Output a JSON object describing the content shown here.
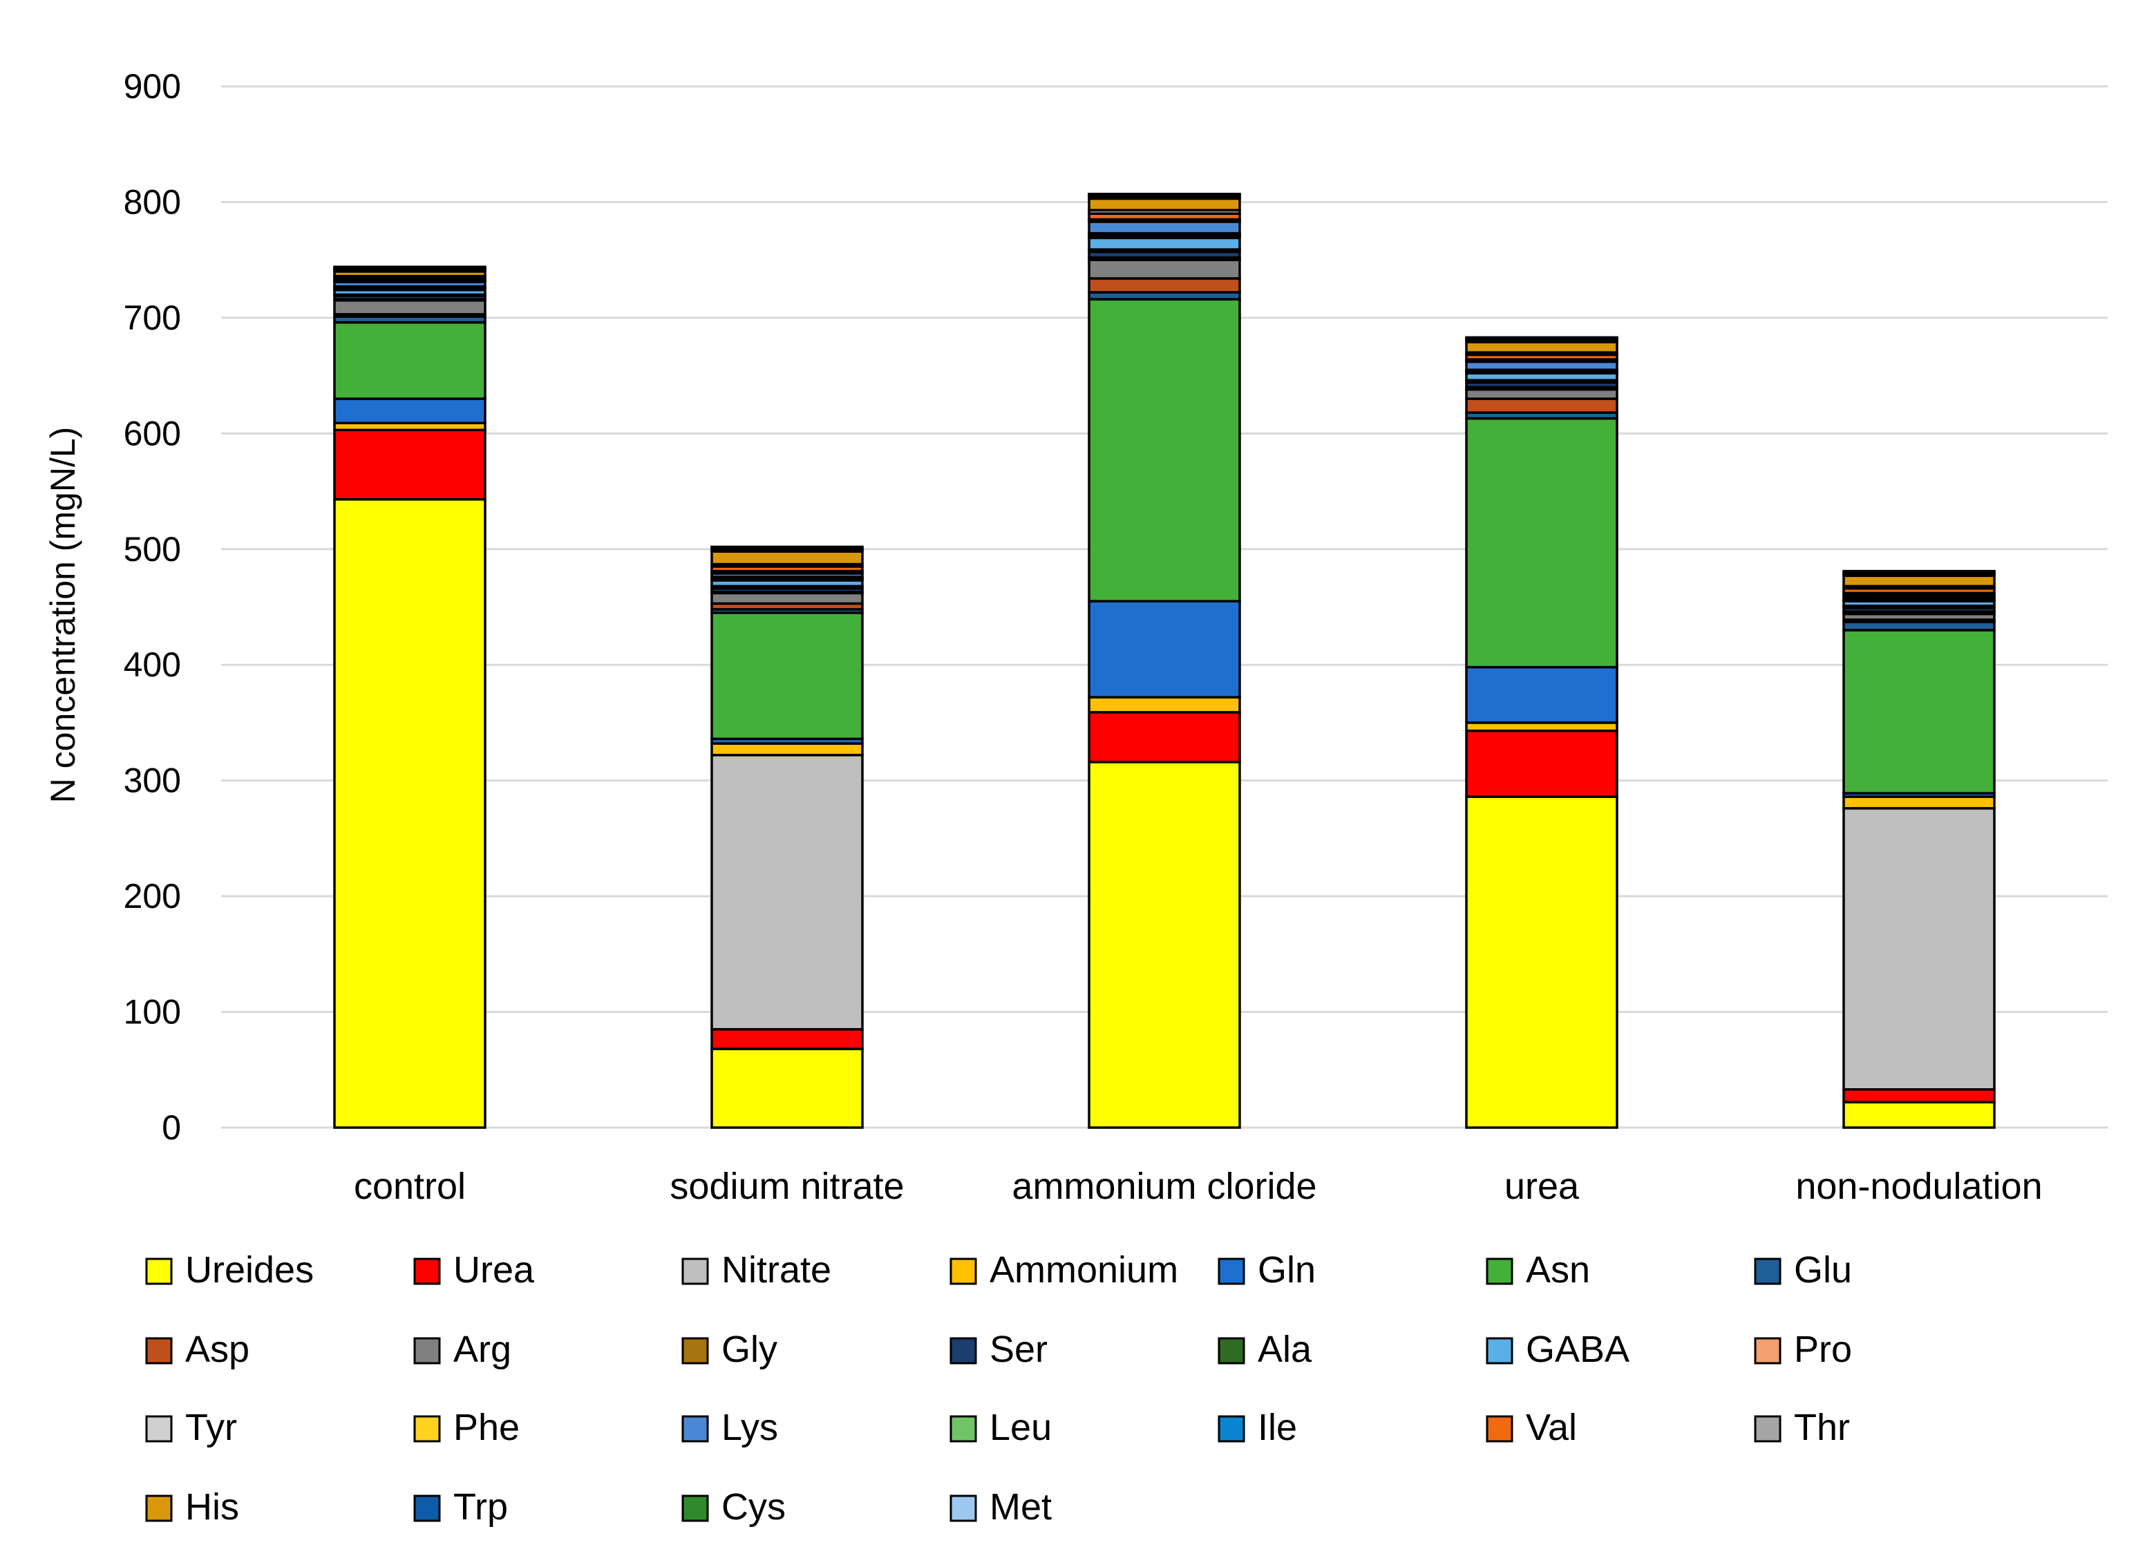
{
  "chart_data": {
    "type": "bar",
    "stacked": true,
    "title": "",
    "xlabel": "",
    "ylabel": "N concentration (mgN/L)",
    "ylim": [
      0,
      900
    ],
    "yticks": [
      0,
      100,
      200,
      300,
      400,
      500,
      600,
      700,
      800,
      900
    ],
    "grid": true,
    "legend_position": "bottom",
    "categories": [
      "control",
      "sodium nitrate",
      "ammonium cloride",
      "urea",
      "non-nodulation"
    ],
    "series": [
      {
        "name": "Ureides",
        "color": "#FFFF00",
        "values": [
          543,
          68,
          316,
          286,
          22
        ]
      },
      {
        "name": "Urea",
        "color": "#FF0000",
        "values": [
          60,
          17,
          43,
          57,
          11
        ]
      },
      {
        "name": "Nitrate",
        "color": "#BFBFBF",
        "values": [
          0,
          237,
          0,
          0,
          243
        ]
      },
      {
        "name": "Ammonium",
        "color": "#FFC000",
        "values": [
          6,
          10,
          13,
          7,
          10
        ]
      },
      {
        "name": "Gln",
        "color": "#1F6FD0",
        "values": [
          21,
          4,
          83,
          48,
          3
        ]
      },
      {
        "name": "Asn",
        "color": "#43B03A",
        "values": [
          66,
          109,
          261,
          215,
          141
        ]
      },
      {
        "name": "Glu",
        "color": "#1F5F99",
        "values": [
          5,
          3,
          6,
          5,
          7
        ]
      },
      {
        "name": "Asp",
        "color": "#C0501B",
        "values": [
          2,
          5,
          12,
          12,
          2
        ]
      },
      {
        "name": "Arg",
        "color": "#808080",
        "values": [
          12,
          9,
          16,
          8,
          5
        ]
      },
      {
        "name": "Gly",
        "color": "#A8740F",
        "values": [
          1,
          1,
          2,
          2,
          2
        ]
      },
      {
        "name": "Ser",
        "color": "#1A3E6E",
        "values": [
          3,
          3,
          5,
          4,
          3
        ]
      },
      {
        "name": "Ala",
        "color": "#2F6B23",
        "values": [
          1,
          2,
          2,
          2,
          2
        ]
      },
      {
        "name": "GABA",
        "color": "#5BAEE6",
        "values": [
          4,
          5,
          10,
          6,
          4
        ]
      },
      {
        "name": "Pro",
        "color": "#F4A070",
        "values": [
          1,
          1,
          2,
          1,
          1
        ]
      },
      {
        "name": "Tyr",
        "color": "#D0D0D0",
        "values": [
          1,
          1,
          1,
          1,
          1
        ]
      },
      {
        "name": "Phe",
        "color": "#FFD21F",
        "values": [
          1,
          1,
          1,
          1,
          1
        ]
      },
      {
        "name": "Lys",
        "color": "#4A88D6",
        "values": [
          4,
          3,
          10,
          7,
          2
        ]
      },
      {
        "name": "Leu",
        "color": "#70C466",
        "values": [
          1,
          1,
          1,
          1,
          1
        ]
      },
      {
        "name": "Ile",
        "color": "#0A84D0",
        "values": [
          1,
          1,
          1,
          1,
          1
        ]
      },
      {
        "name": "Val",
        "color": "#F06A10",
        "values": [
          2,
          4,
          5,
          4,
          4
        ]
      },
      {
        "name": "Thr",
        "color": "#A5A5A5",
        "values": [
          1,
          2,
          3,
          2,
          2
        ]
      },
      {
        "name": "His",
        "color": "#D9980A",
        "values": [
          4,
          11,
          10,
          9,
          9
        ]
      },
      {
        "name": "Trp",
        "color": "#0E5BA8",
        "values": [
          2,
          2,
          2,
          2,
          2
        ]
      },
      {
        "name": "Cys",
        "color": "#2E8A2A",
        "values": [
          1,
          1,
          1,
          1,
          1
        ]
      },
      {
        "name": "Met",
        "color": "#9DC9F0",
        "values": [
          1,
          1,
          1,
          1,
          1
        ]
      }
    ]
  }
}
